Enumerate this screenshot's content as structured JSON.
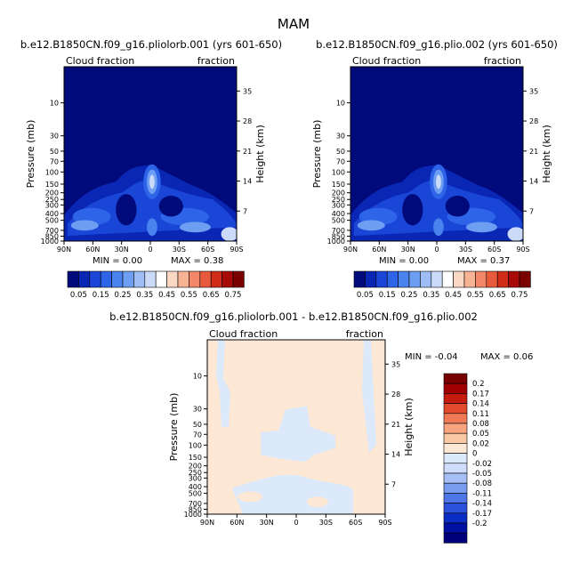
{
  "figure_title": "MAM",
  "colors": {
    "cloud_levels": [
      "#000a7a",
      "#0a26b4",
      "#1a46d8",
      "#2e64e8",
      "#4a82ee",
      "#6e9ef2",
      "#9ebcf6",
      "#cadaf8",
      "#ffffff",
      "#fbd8c4",
      "#f8b294",
      "#f28868",
      "#e85a3c",
      "#d02c18",
      "#a80a08",
      "#7a0000"
    ],
    "diff_levels": [
      "#00007a",
      "#0010a0",
      "#0a2ec4",
      "#2a52dc",
      "#4e76e8",
      "#7a9cf0",
      "#a6c0f6",
      "#cfdcfb",
      "#dce9fb",
      "#fde8d6",
      "#fbc8a6",
      "#f8a47e",
      "#f07a56",
      "#e24a2c",
      "#c61c10",
      "#a00000",
      "#780000"
    ]
  },
  "chart_data": [
    {
      "type": "heatmap",
      "title": "b.e12.B1850CN.f09_g16.pliolorb.001 (yrs 601-650)",
      "left_label": "Cloud fraction",
      "right_label": "fraction",
      "xlabel": "",
      "ylabel": "Pressure (mb)",
      "ylabel_right": "Height (km)",
      "x_ticks": [
        "90N",
        "60N",
        "30N",
        "0",
        "30S",
        "60S",
        "90S"
      ],
      "y_ticks": [
        "10",
        "30",
        "50",
        "70",
        "100",
        "150",
        "200",
        "250",
        "300",
        "400",
        "500",
        "700",
        "850",
        "1000"
      ],
      "y_ticks_right": [
        "35",
        "28",
        "21",
        "14",
        "7"
      ],
      "y_scale": "log",
      "ylim": [
        1000,
        3
      ],
      "min_label": "MIN = 0.00",
      "max_label": "MAX = 0.38",
      "min": 0.0,
      "max": 0.38,
      "colorbar_labels": [
        "0.05",
        "0.15",
        "0.25",
        "0.35",
        "0.45",
        "0.55",
        "0.65",
        "0.75"
      ]
    },
    {
      "type": "heatmap",
      "title": "b.e12.B1850CN.f09_g16.plio.002 (yrs 601-650)",
      "left_label": "Cloud fraction",
      "right_label": "fraction",
      "xlabel": "",
      "ylabel": "Pressure (mb)",
      "ylabel_right": "Height (km)",
      "x_ticks": [
        "90N",
        "60N",
        "30N",
        "0",
        "30S",
        "60S",
        "90S"
      ],
      "y_ticks": [
        "10",
        "30",
        "50",
        "70",
        "100",
        "150",
        "200",
        "250",
        "300",
        "400",
        "500",
        "700",
        "850",
        "1000"
      ],
      "y_ticks_right": [
        "35",
        "28",
        "21",
        "14",
        "7"
      ],
      "y_scale": "log",
      "ylim": [
        1000,
        3
      ],
      "min_label": "MIN = 0.00",
      "max_label": "MAX = 0.37",
      "min": 0.0,
      "max": 0.37,
      "colorbar_labels": [
        "0.05",
        "0.15",
        "0.25",
        "0.35",
        "0.45",
        "0.55",
        "0.65",
        "0.75"
      ]
    },
    {
      "type": "heatmap",
      "title": "b.e12.B1850CN.f09_g16.pliolorb.001 - b.e12.B1850CN.f09_g16.plio.002",
      "left_label": "Cloud fraction",
      "right_label": "fraction",
      "xlabel": "",
      "ylabel": "Pressure (mb)",
      "ylabel_right": "Height (km)",
      "x_ticks": [
        "90N",
        "60N",
        "30N",
        "0",
        "30S",
        "60S",
        "90S"
      ],
      "y_ticks": [
        "10",
        "30",
        "50",
        "70",
        "100",
        "150",
        "200",
        "250",
        "300",
        "400",
        "500",
        "700",
        "850",
        "1000"
      ],
      "y_ticks_right": [
        "35",
        "28",
        "21",
        "14",
        "7"
      ],
      "y_scale": "log",
      "ylim": [
        1000,
        3
      ],
      "min_label": "MIN = -0.04",
      "max_label": "MAX = 0.06",
      "min": -0.04,
      "max": 0.06,
      "colorbar_labels": [
        "0.2",
        "0.17",
        "0.14",
        "0.11",
        "0.08",
        "0.05",
        "0.02",
        "0",
        "-0.02",
        "-0.05",
        "-0.08",
        "-0.11",
        "-0.14",
        "-0.17",
        "-0.2"
      ]
    }
  ]
}
